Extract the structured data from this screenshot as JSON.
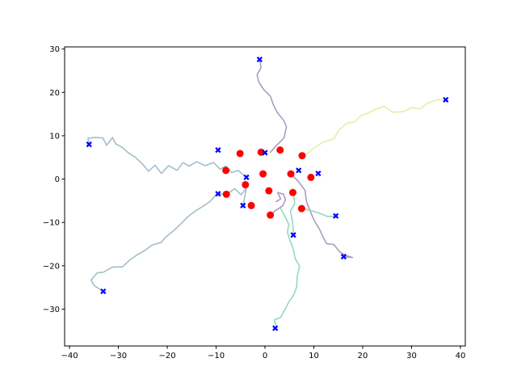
{
  "chart_data": {
    "type": "line",
    "title": "",
    "xlabel": "",
    "ylabel": "",
    "xlim": [
      -41,
      41
    ],
    "ylim": [
      -38.5,
      30.5
    ],
    "grid": false,
    "x_ticks": [
      -40,
      -30,
      -20,
      -10,
      0,
      10,
      20,
      30,
      40
    ],
    "y_ticks": [
      -30,
      -20,
      -10,
      0,
      10,
      20,
      30
    ],
    "x_tick_labels": [
      "−40",
      "−30",
      "−20",
      "−10",
      "0",
      "10",
      "20",
      "30",
      "40"
    ],
    "y_tick_labels": [
      "−30",
      "−20",
      "−10",
      "0",
      "10",
      "20",
      "30"
    ],
    "series": [
      {
        "color": "#9ebcc8",
        "points": [
          [
            -3.8,
            0.4
          ],
          [
            -5.5,
            2
          ],
          [
            -6.8,
            1.5
          ],
          [
            -8,
            3
          ],
          [
            -9.2,
            2.3
          ],
          [
            -10.5,
            3.8
          ],
          [
            -12.3,
            3.1
          ],
          [
            -14,
            4
          ],
          [
            -15.5,
            3
          ],
          [
            -16.8,
            3.8
          ],
          [
            -18,
            2
          ],
          [
            -19.7,
            3.1
          ],
          [
            -21.2,
            1.3
          ],
          [
            -22.5,
            3.2
          ],
          [
            -23.8,
            1.8
          ],
          [
            -25.1,
            3.5
          ],
          [
            -26.5,
            5
          ],
          [
            -28,
            6.1
          ],
          [
            -29.2,
            7.3
          ],
          [
            -30.5,
            8.1
          ],
          [
            -31.2,
            9.6
          ],
          [
            -32.4,
            7.8
          ],
          [
            -33.2,
            9.5
          ],
          [
            -34.8,
            9.6
          ],
          [
            -36.2,
            9.4
          ],
          [
            -36,
            8
          ]
        ]
      },
      {
        "color": "#9ebcc8",
        "points": [
          [
            -7.8,
            -3.5
          ],
          [
            -9.8,
            -3.4
          ],
          [
            -11.2,
            -5.1
          ],
          [
            -12.7,
            -6.3
          ],
          [
            -14.3,
            -7.4
          ],
          [
            -15.8,
            -8.7
          ],
          [
            -17.2,
            -10.3
          ],
          [
            -18.6,
            -11.8
          ],
          [
            -20.4,
            -13.5
          ],
          [
            -21.2,
            -14.6
          ],
          [
            -23.1,
            -15.2
          ],
          [
            -24.6,
            -16.5
          ],
          [
            -26.2,
            -17.5
          ],
          [
            -27.8,
            -18.8
          ],
          [
            -29.1,
            -20.2
          ],
          [
            -31.2,
            -20.3
          ],
          [
            -33.1,
            -21.5
          ],
          [
            -34.3,
            -21.6
          ],
          [
            -35.6,
            -23.3
          ],
          [
            -34.9,
            -24.6
          ],
          [
            -33.1,
            -25.9
          ]
        ]
      },
      {
        "color": "#9ebcc8",
        "points": [
          [
            -7.8,
            -3.5
          ],
          [
            -6.2,
            -2.2
          ],
          [
            -4.9,
            -3.6
          ],
          [
            -3.8,
            -2.1
          ],
          [
            -4.5,
            -6.1
          ]
        ]
      },
      {
        "color": "#a696bc",
        "points": [
          [
            1.1,
            6.2
          ],
          [
            2.4,
            7.8
          ],
          [
            3.9,
            9.5
          ],
          [
            4.4,
            12.1
          ],
          [
            3.8,
            13.6
          ],
          [
            2.5,
            15.4
          ],
          [
            1.7,
            17.2
          ],
          [
            1.1,
            19.1
          ],
          [
            -0.3,
            20.7
          ],
          [
            -1.3,
            22.5
          ],
          [
            -1.6,
            24.1
          ],
          [
            -0.8,
            25.7
          ],
          [
            -1.1,
            27.6
          ]
        ]
      },
      {
        "color": "#a696bc",
        "points": [
          [
            5.3,
            1.2
          ],
          [
            6.8,
            -0.5
          ],
          [
            8.2,
            -2.6
          ],
          [
            8.5,
            -5.2
          ],
          [
            9.4,
            -7.8
          ],
          [
            10.1,
            -9.6
          ],
          [
            11.2,
            -11.6
          ],
          [
            11.8,
            -13.2
          ],
          [
            12.6,
            -14.9
          ],
          [
            14.1,
            -15.1
          ],
          [
            15.3,
            -16.8
          ],
          [
            16.5,
            -17.6
          ],
          [
            17.9,
            -18.1
          ],
          [
            16.1,
            -17.9
          ]
        ]
      },
      {
        "color": "#a696bc",
        "points": [
          [
            1.1,
            -8.3
          ],
          [
            2.1,
            -7.3
          ],
          [
            3.6,
            -6.2
          ],
          [
            4.2,
            -4.8
          ],
          [
            3.8,
            -3.5
          ],
          [
            2.6,
            -3.1
          ],
          [
            3.2,
            -4.6
          ],
          [
            2.3,
            -5.2
          ]
        ]
      },
      {
        "color": "#e6ee9c",
        "points": [
          [
            8.2,
            5.4
          ],
          [
            9.9,
            7.1
          ],
          [
            11.9,
            8.5
          ],
          [
            14.1,
            9.3
          ],
          [
            15.2,
            11.4
          ],
          [
            16.8,
            12.9
          ],
          [
            18.3,
            13.2
          ],
          [
            19.6,
            14.6
          ],
          [
            21.1,
            15.2
          ],
          [
            22.8,
            16.2
          ],
          [
            24.4,
            16.8
          ],
          [
            26.2,
            15.4
          ],
          [
            28.4,
            15.6
          ],
          [
            30.1,
            16.5
          ],
          [
            31.8,
            16.2
          ],
          [
            33.1,
            17.4
          ],
          [
            35.2,
            18.3
          ],
          [
            37,
            18.3
          ]
        ]
      },
      {
        "color": "#8ed7b9",
        "points": [
          [
            3.2,
            -6.8
          ],
          [
            4.1,
            -8.6
          ],
          [
            4.9,
            -10.5
          ],
          [
            4.6,
            -12.2
          ],
          [
            5.1,
            -14.1
          ],
          [
            5.8,
            -16.2
          ],
          [
            6.2,
            -18.4
          ],
          [
            7.1,
            -20.1
          ],
          [
            6.6,
            -22.4
          ],
          [
            6.5,
            -24.9
          ],
          [
            5.8,
            -26.9
          ],
          [
            4.9,
            -28.3
          ],
          [
            4.1,
            -30.1
          ],
          [
            3.2,
            -31.9
          ],
          [
            1.9,
            -32.5
          ],
          [
            2.4,
            -34.2
          ]
        ]
      },
      {
        "color": "#8ed7b9",
        "points": [
          [
            7.5,
            -6.8
          ],
          [
            9.3,
            -7.2
          ],
          [
            11.2,
            -7.9
          ],
          [
            12.8,
            -8.6
          ],
          [
            14.4,
            -8.6
          ]
        ]
      },
      {
        "color": "#8ed7b9",
        "points": [
          [
            5.8,
            -3.2
          ],
          [
            6.1,
            -5.6
          ],
          [
            5.2,
            -7.4
          ],
          [
            5.6,
            -9.5
          ],
          [
            5.9,
            -12.9
          ]
        ]
      }
    ],
    "start_points": [
      [
        -5.1,
        5.9
      ],
      [
        -0.8,
        6.2
      ],
      [
        3.1,
        6.7
      ],
      [
        7.6,
        5.4
      ],
      [
        -8,
        2
      ],
      [
        -0.4,
        1.2
      ],
      [
        5.3,
        1.2
      ],
      [
        9.4,
        0.4
      ],
      [
        -4,
        -1.3
      ],
      [
        -7.9,
        -3.5
      ],
      [
        0.8,
        -2.7
      ],
      [
        5.7,
        -3.1
      ],
      [
        -2.8,
        -6.1
      ],
      [
        1.1,
        -8.3
      ],
      [
        7.5,
        -6.8
      ]
    ],
    "end_points": [
      [
        -36,
        8
      ],
      [
        -1.1,
        27.6
      ],
      [
        37,
        18.3
      ],
      [
        -9.6,
        6.7
      ],
      [
        0,
        6.1
      ],
      [
        -3.8,
        0.4
      ],
      [
        6.9,
        2
      ],
      [
        10.9,
        1.3
      ],
      [
        -9.6,
        -3.4
      ],
      [
        -4.5,
        -6.1
      ],
      [
        14.5,
        -8.5
      ],
      [
        5.8,
        -12.9
      ],
      [
        16.1,
        -17.9
      ],
      [
        -33.1,
        -25.9
      ],
      [
        2.1,
        -34.4
      ]
    ],
    "start_marker_color": "#ff0000",
    "end_marker_color": "#0000ff"
  }
}
